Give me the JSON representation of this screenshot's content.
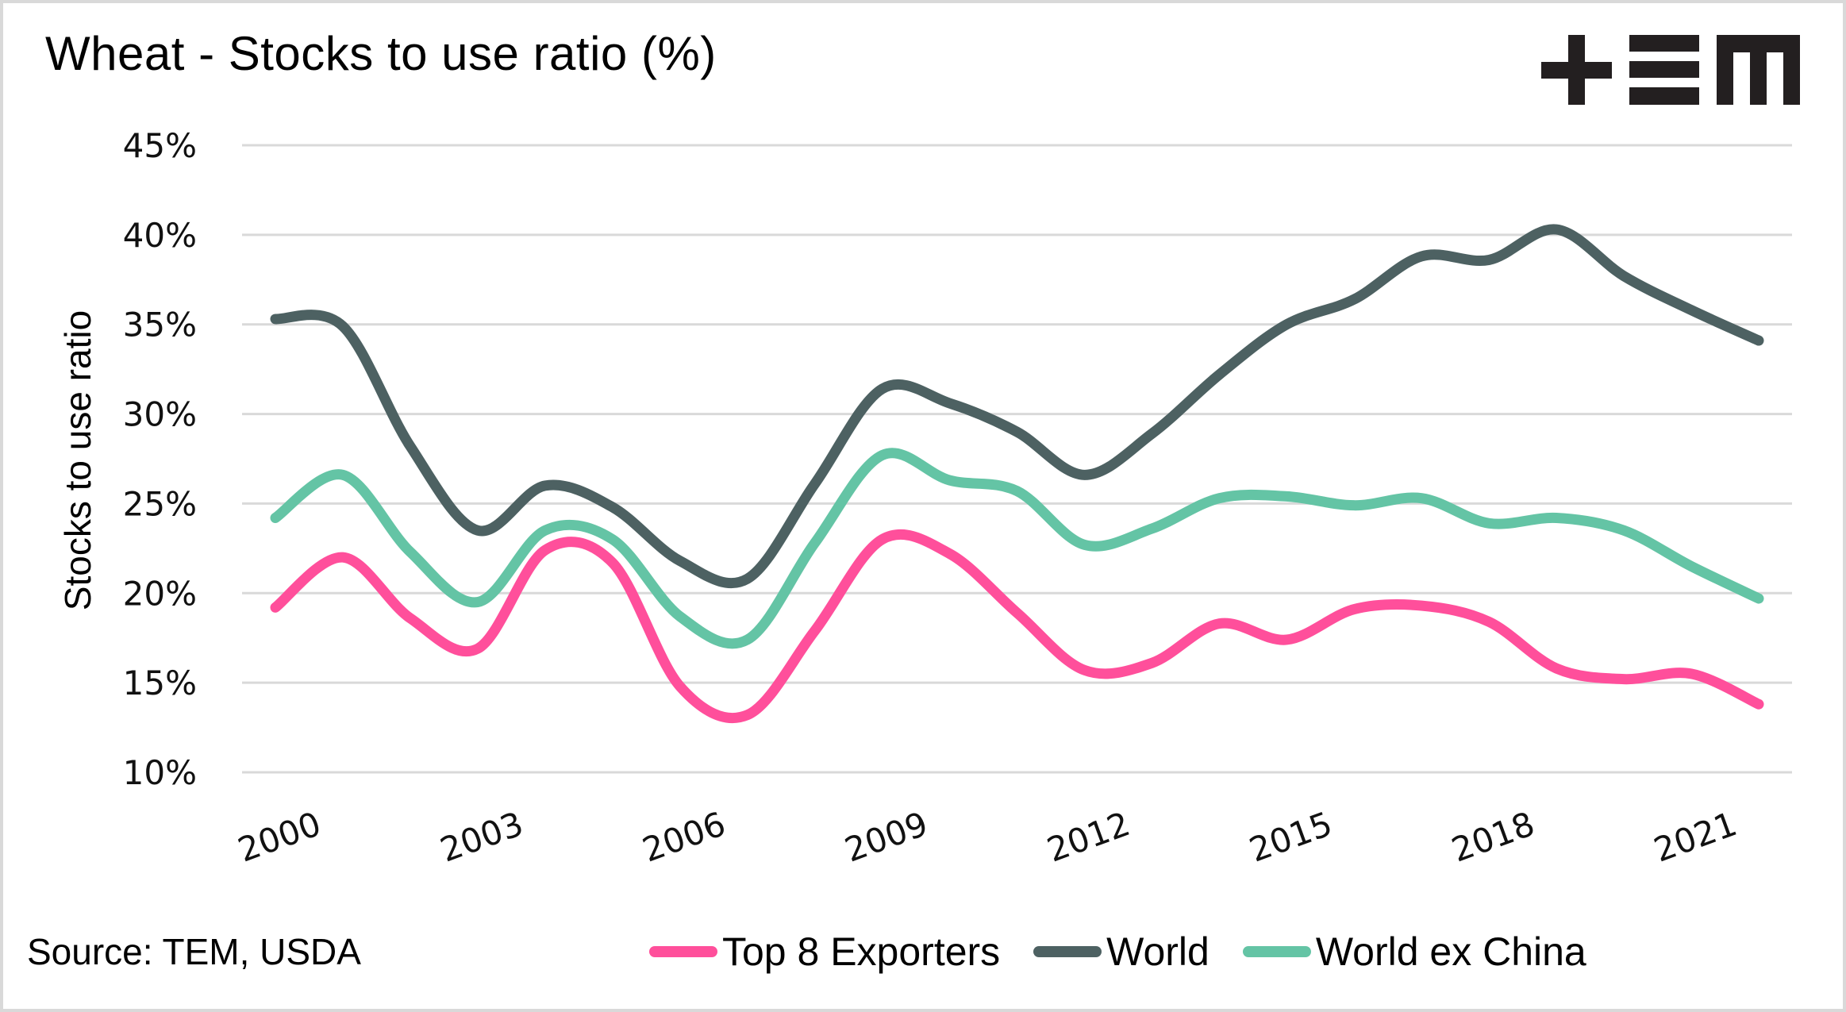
{
  "title": "Wheat - Stocks to use ratio (%)",
  "logo": {
    "icon": "tem-logo-icon",
    "text": "+EM"
  },
  "source": "Source: TEM, USDA",
  "colors": {
    "top8": "#ff4f9b",
    "world": "#4d6162",
    "world_ex_china": "#64c4a5",
    "grid": "#d9d9d9"
  },
  "chart_data": {
    "type": "line",
    "title": "Wheat - Stocks to use ratio (%)",
    "xlabel": "",
    "ylabel": "Stocks to use ratio",
    "ylim": [
      10,
      45
    ],
    "yticks": [
      10,
      15,
      20,
      25,
      30,
      35,
      40,
      45
    ],
    "ytick_labels": [
      "10%",
      "15%",
      "20%",
      "25%",
      "30%",
      "35%",
      "40%",
      "45%"
    ],
    "x": [
      2000,
      2001,
      2002,
      2003,
      2004,
      2005,
      2006,
      2007,
      2008,
      2009,
      2010,
      2011,
      2012,
      2013,
      2014,
      2015,
      2016,
      2017,
      2018,
      2019,
      2020,
      2021,
      2022
    ],
    "xtick_labels": [
      "2000",
      "2003",
      "2006",
      "2009",
      "2012",
      "2015",
      "2018",
      "2021"
    ],
    "grid": true,
    "smooth": true,
    "legend_position": "bottom-right",
    "series": [
      {
        "name": "Top 8 Exporters",
        "color": "#ff4f9b",
        "values": [
          19.2,
          22.0,
          18.6,
          16.9,
          22.4,
          21.7,
          14.8,
          13.2,
          17.9,
          23.0,
          22.2,
          18.9,
          15.7,
          16.1,
          18.3,
          17.4,
          19.1,
          19.3,
          18.4,
          15.8,
          15.2,
          15.5,
          13.8
        ]
      },
      {
        "name": "World",
        "color": "#4d6162",
        "values": [
          35.3,
          34.9,
          28.2,
          23.5,
          26.0,
          24.8,
          21.8,
          20.8,
          26.1,
          31.4,
          30.6,
          29.0,
          26.6,
          28.9,
          32.2,
          35.0,
          36.4,
          38.8,
          38.6,
          40.3,
          37.7,
          35.8,
          34.1
        ]
      },
      {
        "name": "World ex China",
        "color": "#64c4a5",
        "values": [
          24.2,
          26.6,
          22.3,
          19.5,
          23.5,
          23.0,
          18.7,
          17.4,
          22.8,
          27.7,
          26.3,
          25.7,
          22.7,
          23.6,
          25.3,
          25.4,
          24.9,
          25.3,
          23.9,
          24.2,
          23.5,
          21.5,
          19.7
        ]
      }
    ]
  }
}
